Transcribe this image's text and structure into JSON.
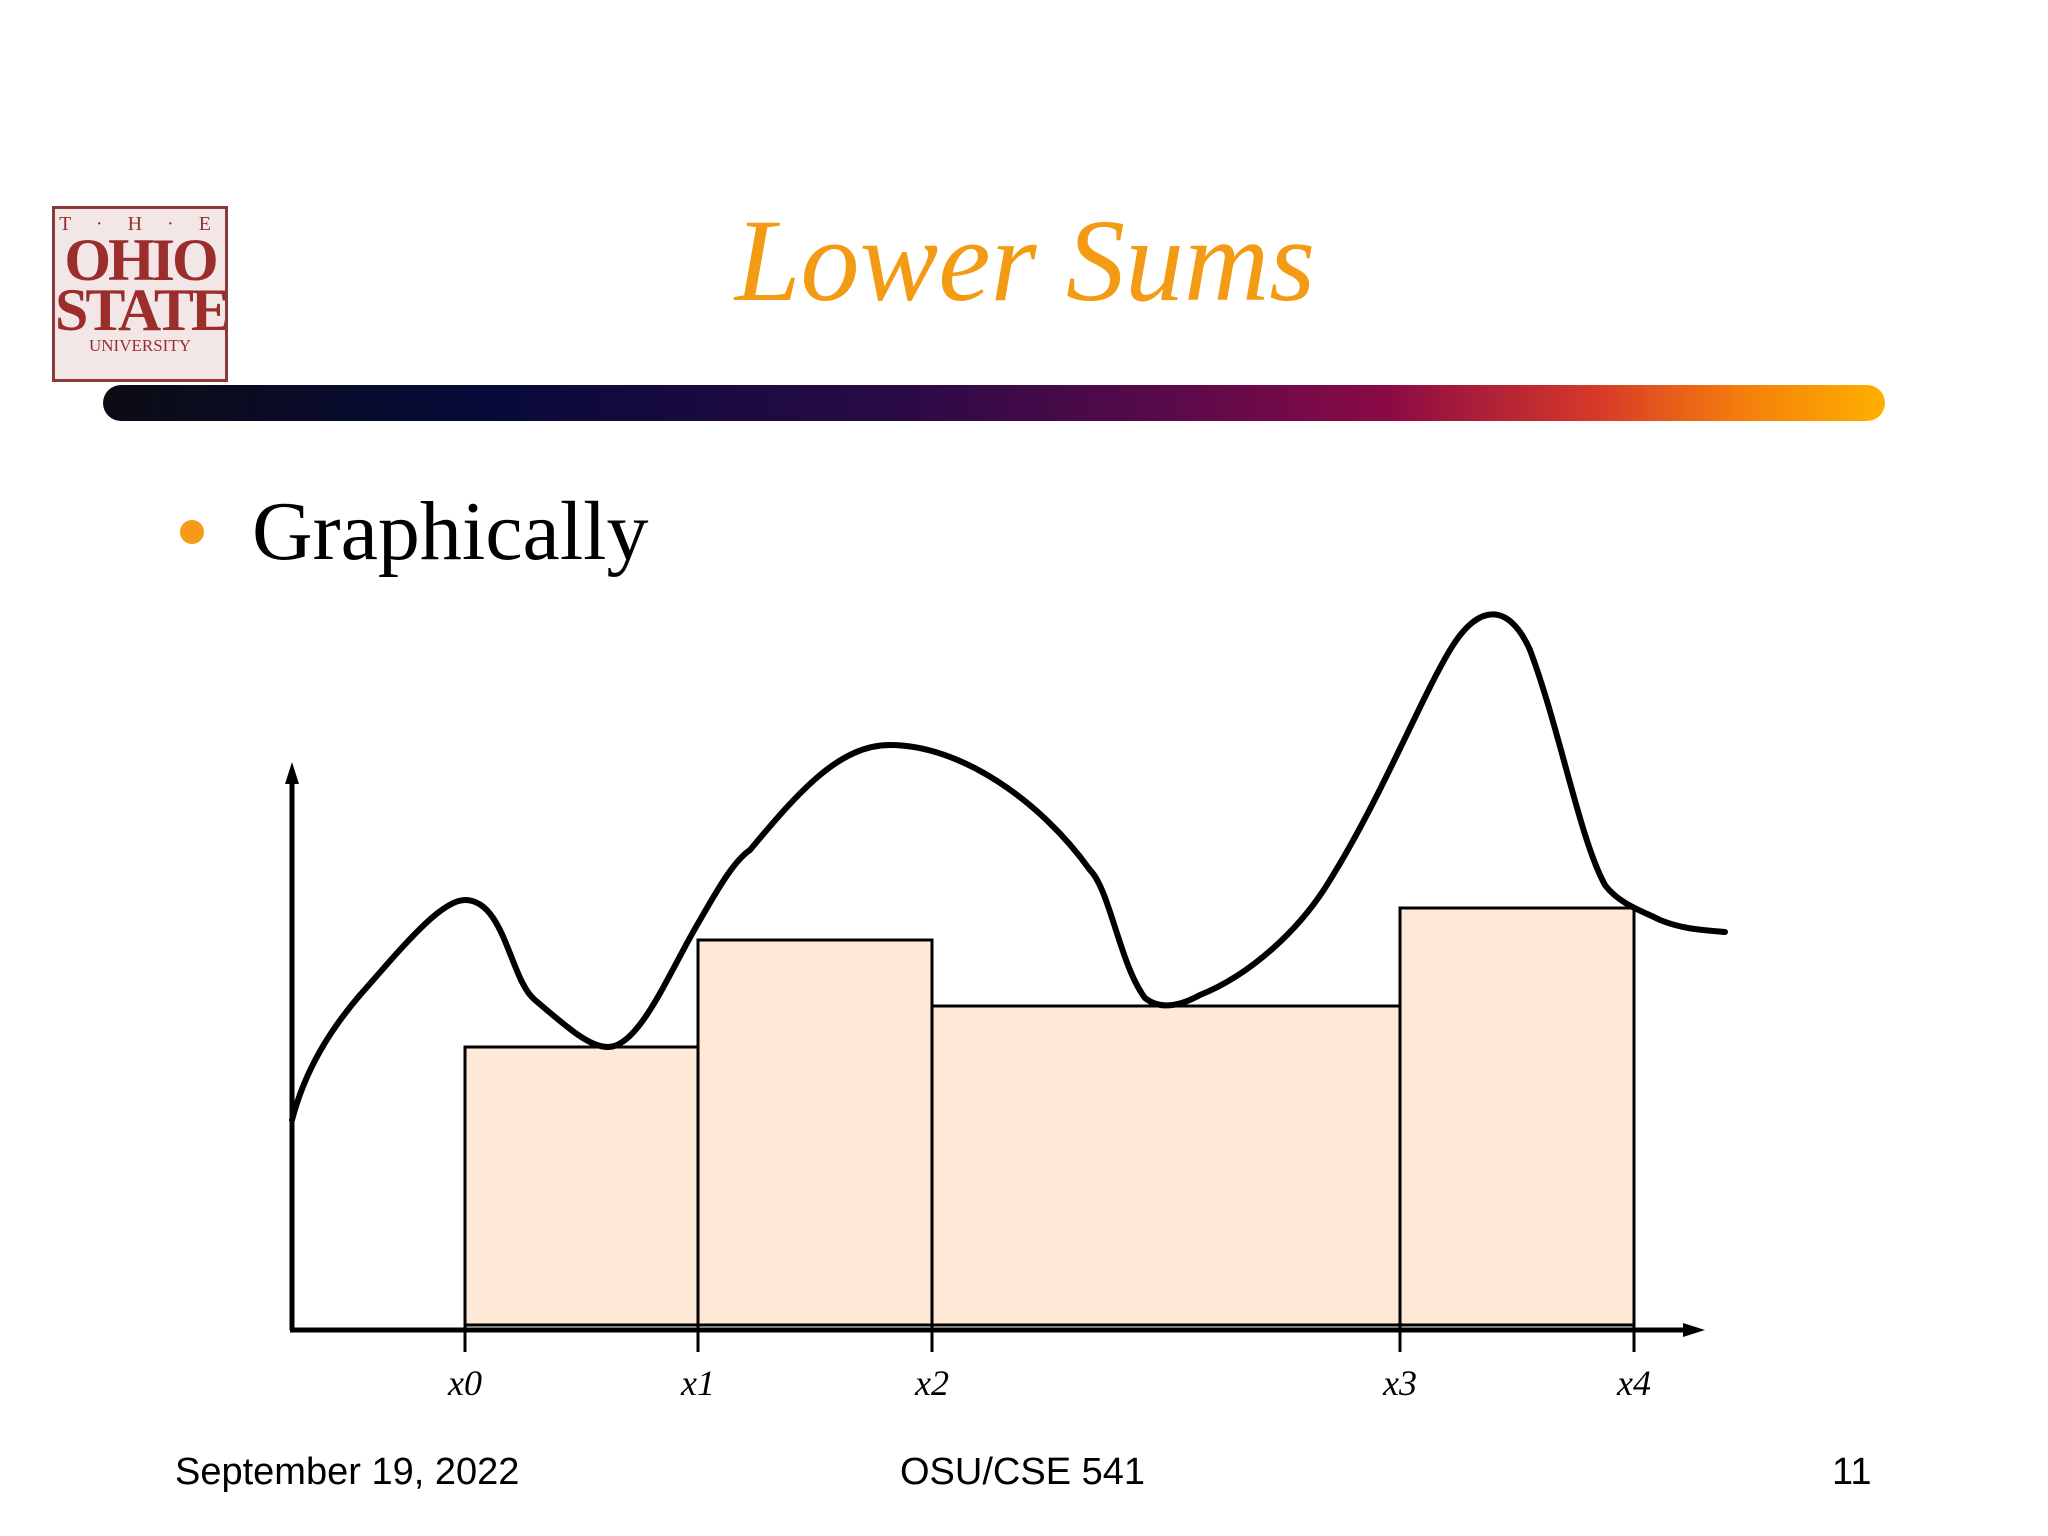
{
  "logo": {
    "line1": "T · H · E",
    "line2": "OHIO",
    "line3": "STATE",
    "line4": "UNIVERSITY"
  },
  "title": "Lower Sums",
  "bullet": "Graphically",
  "colors": {
    "accent": "#f39b14",
    "rect_fill": "#fde9d6"
  },
  "figure": {
    "tick_labels": [
      "x0",
      "x1",
      "x2",
      "x3",
      "x4"
    ],
    "lower_rectangle_heights": [
      0.52,
      0.77,
      0.62,
      0.85
    ]
  },
  "footer": {
    "date": "September 19, 2022",
    "course": "OSU/CSE 541",
    "page": "11"
  }
}
